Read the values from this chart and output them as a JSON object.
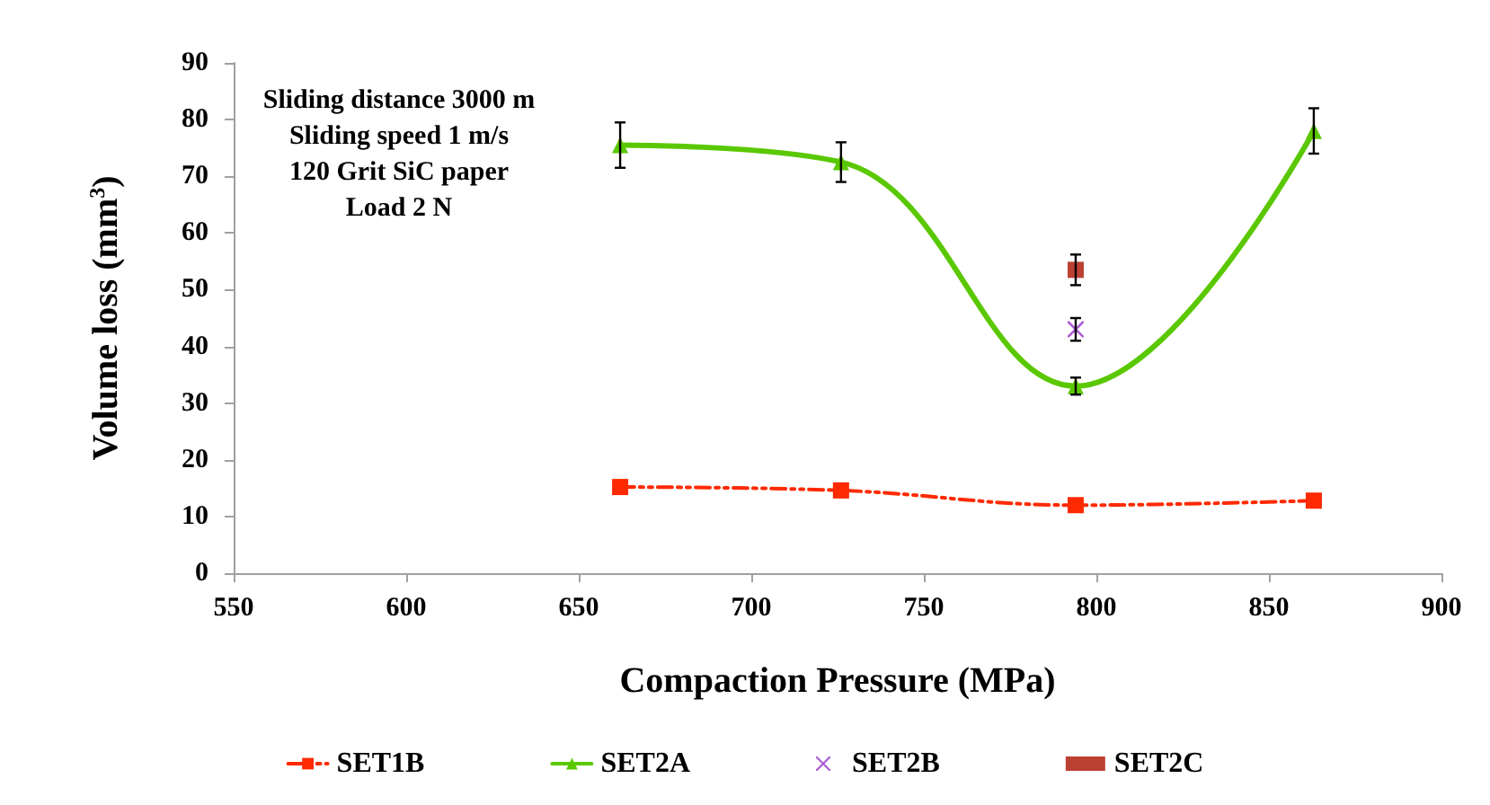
{
  "chart_data": {
    "type": "line",
    "xlabel": "Compaction Pressure (MPa)",
    "ylabel": "Volume loss (mm$^{3}$)",
    "annotations": [
      "Sliding distance 3000 m",
      "Sliding speed 1 m/s",
      "120 Grit SiC paper",
      "Load 2 N"
    ],
    "xlim": [
      550,
      900
    ],
    "xticks": [
      550,
      600,
      650,
      700,
      750,
      800,
      850,
      900
    ],
    "ylim": [
      0,
      90
    ],
    "yticks": [
      0,
      10,
      20,
      30,
      40,
      50,
      60,
      70,
      80,
      90
    ],
    "grid": false,
    "legend": "bottom",
    "series": [
      {
        "name": "SET1B",
        "color": "#ff2a00",
        "marker": "square",
        "line_style": "dashed",
        "x": [
          662,
          726,
          794,
          863
        ],
        "values": [
          15.2,
          14.6,
          12,
          12.8
        ]
      },
      {
        "name": "SET2A",
        "color": "#5ac800",
        "marker": "triangle",
        "line_style": "solid",
        "x": [
          662,
          726,
          794,
          863
        ],
        "values": [
          75.5,
          72.5,
          33,
          78
        ],
        "errors": [
          4,
          3.5,
          1.5,
          4
        ]
      },
      {
        "name": "SET2B",
        "color": "#9933cc",
        "type": "scatter",
        "marker": "cross",
        "x": [
          794
        ],
        "values": [
          43
        ],
        "errors": [
          2
        ]
      },
      {
        "name": "SET2C",
        "color": "#aa1100",
        "type": "scatter",
        "marker": "square",
        "x": [
          794
        ],
        "values": [
          53.5
        ],
        "errors": [
          2.7
        ]
      }
    ]
  }
}
